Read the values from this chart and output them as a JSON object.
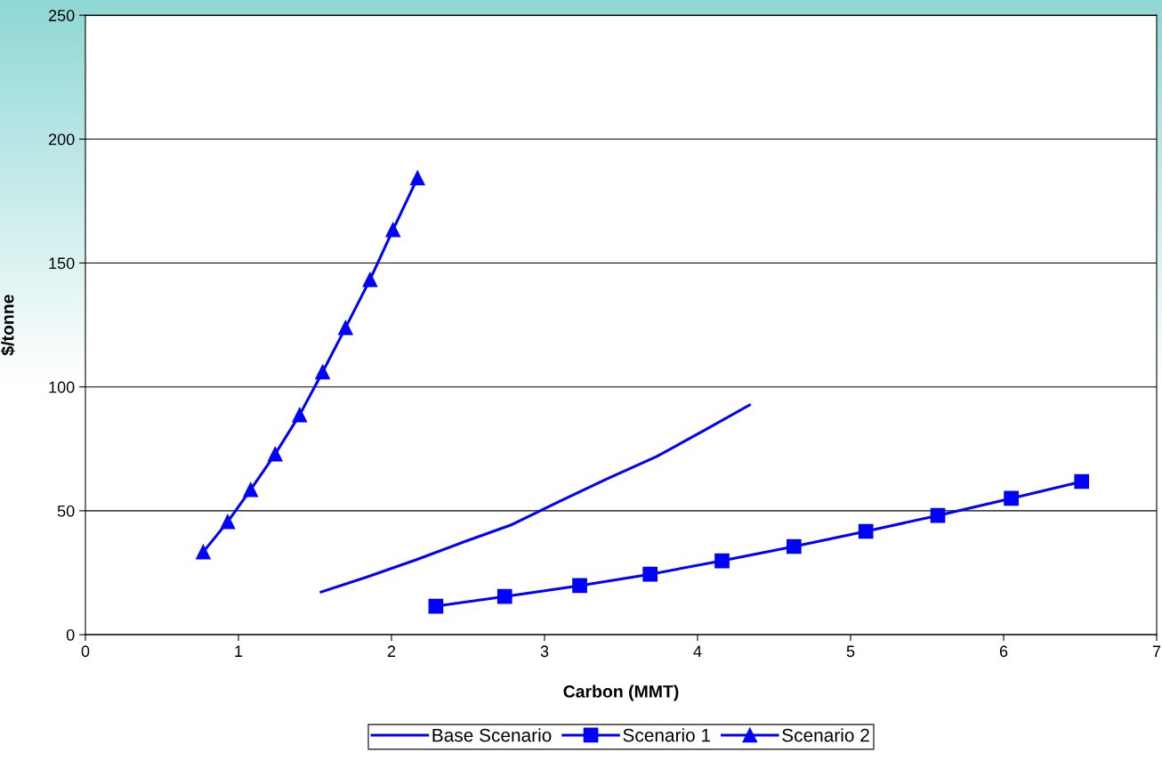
{
  "chart_data": {
    "type": "line",
    "xlabel": "Carbon (MMT)",
    "ylabel": "$/tonne",
    "xlim": [
      0,
      7
    ],
    "xticks": [
      0,
      1,
      2,
      3,
      4,
      5,
      6,
      7
    ],
    "ylim": [
      0,
      250
    ],
    "yticks": [
      0,
      50,
      100,
      150,
      200,
      250
    ],
    "grid": "y",
    "legend": "bottom",
    "line_style": "solid",
    "series": [
      {
        "name": "Base Scenario",
        "color": "#0000ff",
        "marker": "none",
        "x": [
          1.54,
          1.84,
          2.16,
          2.47,
          2.79,
          3.1,
          3.41,
          3.73,
          4.04,
          4.34
        ],
        "values": [
          17.2,
          23.3,
          30.2,
          37.4,
          44.5,
          53.9,
          62.9,
          71.8,
          82.3,
          92.7
        ]
      },
      {
        "name": "Scenario 1",
        "color": "#0000ff",
        "marker": "square",
        "x": [
          2.29,
          2.74,
          3.23,
          3.69,
          4.16,
          4.63,
          5.1,
          5.57,
          6.05,
          6.51
        ],
        "values": [
          11.5,
          15.4,
          19.8,
          24.4,
          29.8,
          35.6,
          41.7,
          48.1,
          55.0,
          61.8
        ]
      },
      {
        "name": "Scenario 2",
        "color": "#0000ff",
        "marker": "triangle",
        "x": [
          0.77,
          0.93,
          1.08,
          1.24,
          1.4,
          1.55,
          1.7,
          1.86,
          2.01,
          2.17
        ],
        "values": [
          33.4,
          45.6,
          58.5,
          72.9,
          88.7,
          106.0,
          123.9,
          143.3,
          163.4,
          184.3
        ]
      }
    ]
  }
}
